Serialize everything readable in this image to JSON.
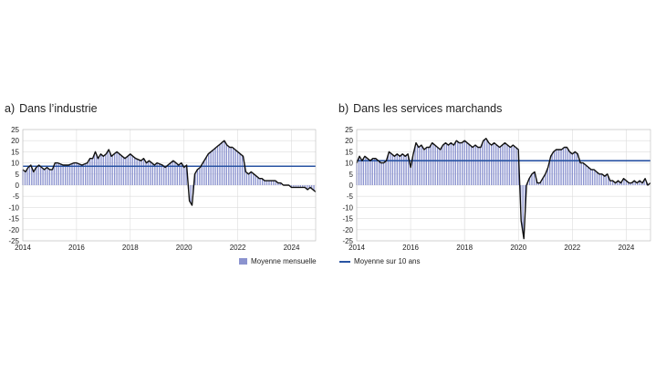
{
  "chart_data": [
    {
      "type": "bar",
      "panel_letter": "a)",
      "title": "Dans l’industrie",
      "yticks": [
        25,
        20,
        15,
        10,
        5,
        0,
        -5,
        -10,
        -15,
        -20,
        -25
      ],
      "ylim": [
        -25,
        25
      ],
      "xlim": [
        2014.0,
        2024.9
      ],
      "xticks": [
        "2014",
        "2016",
        "2018",
        "2020",
        "2022",
        "2024"
      ],
      "series": [
        {
          "kind": "bar-and-line",
          "points": [
            [
              2014.0,
              7
            ],
            [
              2014.1,
              6
            ],
            [
              2014.2,
              8
            ],
            [
              2014.3,
              9
            ],
            [
              2014.4,
              6
            ],
            [
              2014.5,
              8
            ],
            [
              2014.6,
              9
            ],
            [
              2014.7,
              8
            ],
            [
              2014.8,
              7
            ],
            [
              2014.9,
              8
            ],
            [
              2015.0,
              7
            ],
            [
              2015.1,
              7
            ],
            [
              2015.2,
              10
            ],
            [
              2015.3,
              10
            ],
            [
              2015.5,
              9
            ],
            [
              2015.7,
              9
            ],
            [
              2015.9,
              10
            ],
            [
              2016.0,
              10
            ],
            [
              2016.2,
              9
            ],
            [
              2016.4,
              10
            ],
            [
              2016.5,
              12
            ],
            [
              2016.6,
              12
            ],
            [
              2016.7,
              15
            ],
            [
              2016.8,
              12
            ],
            [
              2016.9,
              14
            ],
            [
              2017.0,
              13
            ],
            [
              2017.1,
              14
            ],
            [
              2017.2,
              16
            ],
            [
              2017.3,
              13
            ],
            [
              2017.4,
              14
            ],
            [
              2017.5,
              15
            ],
            [
              2017.6,
              14
            ],
            [
              2017.7,
              13
            ],
            [
              2017.8,
              12
            ],
            [
              2017.9,
              13
            ],
            [
              2018.0,
              14
            ],
            [
              2018.1,
              13
            ],
            [
              2018.2,
              12
            ],
            [
              2018.4,
              11
            ],
            [
              2018.5,
              12
            ],
            [
              2018.6,
              10
            ],
            [
              2018.7,
              11
            ],
            [
              2018.8,
              10
            ],
            [
              2018.9,
              9
            ],
            [
              2019.0,
              10
            ],
            [
              2019.2,
              9
            ],
            [
              2019.3,
              8
            ],
            [
              2019.4,
              9
            ],
            [
              2019.5,
              10
            ],
            [
              2019.6,
              11
            ],
            [
              2019.7,
              10
            ],
            [
              2019.8,
              9
            ],
            [
              2019.9,
              10
            ],
            [
              2020.0,
              8
            ],
            [
              2020.1,
              9
            ],
            [
              2020.2,
              -7
            ],
            [
              2020.3,
              -9
            ],
            [
              2020.4,
              5
            ],
            [
              2020.5,
              7
            ],
            [
              2020.6,
              8
            ],
            [
              2020.7,
              10
            ],
            [
              2020.8,
              12
            ],
            [
              2020.9,
              14
            ],
            [
              2021.0,
              15
            ],
            [
              2021.1,
              16
            ],
            [
              2021.2,
              17
            ],
            [
              2021.3,
              18
            ],
            [
              2021.4,
              19
            ],
            [
              2021.5,
              20
            ],
            [
              2021.6,
              18
            ],
            [
              2021.7,
              17
            ],
            [
              2021.8,
              17
            ],
            [
              2021.9,
              16
            ],
            [
              2022.0,
              15
            ],
            [
              2022.1,
              14
            ],
            [
              2022.2,
              13
            ],
            [
              2022.3,
              6
            ],
            [
              2022.4,
              5
            ],
            [
              2022.5,
              6
            ],
            [
              2022.6,
              5
            ],
            [
              2022.7,
              4
            ],
            [
              2022.8,
              3
            ],
            [
              2022.9,
              3
            ],
            [
              2023.0,
              2
            ],
            [
              2023.2,
              2
            ],
            [
              2023.4,
              2
            ],
            [
              2023.5,
              1
            ],
            [
              2023.6,
              1
            ],
            [
              2023.7,
              0
            ],
            [
              2023.8,
              0
            ],
            [
              2023.9,
              0
            ],
            [
              2024.0,
              -1
            ],
            [
              2024.2,
              -1
            ],
            [
              2024.4,
              -1
            ],
            [
              2024.5,
              -1
            ],
            [
              2024.6,
              -2
            ],
            [
              2024.7,
              -1
            ],
            [
              2024.8,
              -2
            ],
            [
              2024.9,
              -3
            ]
          ]
        }
      ],
      "reference_line": {
        "name": "Moyenne sur 10 ans",
        "value": 8.5,
        "color": "#2a54a3"
      },
      "bar_color": "#8b93cf",
      "line_color": "#111111",
      "legend": {
        "label": "Moyenne mensuelle",
        "placement": "bottom-right"
      }
    },
    {
      "type": "bar",
      "panel_letter": "b)",
      "title": "Dans les services marchands",
      "yticks": [
        25,
        20,
        15,
        10,
        5,
        0,
        -5,
        -10,
        -15,
        -20,
        -25
      ],
      "ylim": [
        -25,
        25
      ],
      "xlim": [
        2014.0,
        2024.9
      ],
      "xticks": [
        "2014",
        "2016",
        "2018",
        "2020",
        "2022",
        "2024"
      ],
      "series": [
        {
          "kind": "bar-and-line",
          "points": [
            [
              2014.0,
              10
            ],
            [
              2014.1,
              13
            ],
            [
              2014.2,
              11
            ],
            [
              2014.3,
              13
            ],
            [
              2014.4,
              12
            ],
            [
              2014.5,
              11
            ],
            [
              2014.6,
              12
            ],
            [
              2014.7,
              12
            ],
            [
              2014.8,
              11
            ],
            [
              2014.9,
              10
            ],
            [
              2015.0,
              10
            ],
            [
              2015.1,
              11
            ],
            [
              2015.2,
              15
            ],
            [
              2015.3,
              14
            ],
            [
              2015.4,
              13
            ],
            [
              2015.5,
              14
            ],
            [
              2015.6,
              13
            ],
            [
              2015.7,
              14
            ],
            [
              2015.8,
              13
            ],
            [
              2015.9,
              14
            ],
            [
              2016.0,
              8
            ],
            [
              2016.1,
              14
            ],
            [
              2016.2,
              19
            ],
            [
              2016.3,
              17
            ],
            [
              2016.4,
              18
            ],
            [
              2016.5,
              16
            ],
            [
              2016.6,
              17
            ],
            [
              2016.7,
              17
            ],
            [
              2016.8,
              19
            ],
            [
              2016.9,
              18
            ],
            [
              2017.0,
              17
            ],
            [
              2017.1,
              16
            ],
            [
              2017.2,
              18
            ],
            [
              2017.3,
              19
            ],
            [
              2017.4,
              18
            ],
            [
              2017.5,
              19
            ],
            [
              2017.6,
              18
            ],
            [
              2017.7,
              20
            ],
            [
              2017.8,
              19
            ],
            [
              2017.9,
              19
            ],
            [
              2018.0,
              20
            ],
            [
              2018.1,
              19
            ],
            [
              2018.2,
              18
            ],
            [
              2018.3,
              17
            ],
            [
              2018.4,
              18
            ],
            [
              2018.5,
              17
            ],
            [
              2018.6,
              17
            ],
            [
              2018.7,
              20
            ],
            [
              2018.8,
              21
            ],
            [
              2018.9,
              19
            ],
            [
              2019.0,
              18
            ],
            [
              2019.1,
              19
            ],
            [
              2019.2,
              18
            ],
            [
              2019.3,
              17
            ],
            [
              2019.4,
              18
            ],
            [
              2019.5,
              19
            ],
            [
              2019.6,
              18
            ],
            [
              2019.7,
              17
            ],
            [
              2019.8,
              18
            ],
            [
              2019.9,
              17
            ],
            [
              2020.0,
              16
            ],
            [
              2020.1,
              -16
            ],
            [
              2020.2,
              -24
            ],
            [
              2020.3,
              0
            ],
            [
              2020.4,
              3
            ],
            [
              2020.5,
              5
            ],
            [
              2020.6,
              6
            ],
            [
              2020.7,
              1
            ],
            [
              2020.8,
              1
            ],
            [
              2020.9,
              3
            ],
            [
              2021.0,
              5
            ],
            [
              2021.1,
              8
            ],
            [
              2021.2,
              13
            ],
            [
              2021.3,
              15
            ],
            [
              2021.4,
              16
            ],
            [
              2021.5,
              16
            ],
            [
              2021.6,
              16
            ],
            [
              2021.7,
              17
            ],
            [
              2021.8,
              17
            ],
            [
              2021.9,
              15
            ],
            [
              2022.0,
              14
            ],
            [
              2022.1,
              15
            ],
            [
              2022.2,
              14
            ],
            [
              2022.3,
              10
            ],
            [
              2022.4,
              10
            ],
            [
              2022.5,
              9
            ],
            [
              2022.6,
              8
            ],
            [
              2022.7,
              7
            ],
            [
              2022.8,
              7
            ],
            [
              2022.9,
              6
            ],
            [
              2023.0,
              5
            ],
            [
              2023.1,
              5
            ],
            [
              2023.2,
              4
            ],
            [
              2023.3,
              5
            ],
            [
              2023.4,
              2
            ],
            [
              2023.5,
              2
            ],
            [
              2023.6,
              1
            ],
            [
              2023.7,
              2
            ],
            [
              2023.8,
              1
            ],
            [
              2023.9,
              3
            ],
            [
              2024.0,
              2
            ],
            [
              2024.1,
              1
            ],
            [
              2024.2,
              1
            ],
            [
              2024.3,
              2
            ],
            [
              2024.4,
              1
            ],
            [
              2024.5,
              2
            ],
            [
              2024.6,
              1
            ],
            [
              2024.7,
              3
            ],
            [
              2024.8,
              0
            ],
            [
              2024.9,
              1
            ]
          ]
        }
      ],
      "reference_line": {
        "name": "Moyenne sur 10 ans",
        "value": 11,
        "color": "#2a54a3"
      },
      "bar_color": "#8b93cf",
      "line_color": "#111111",
      "legend": {
        "label": "Moyenne sur 10 ans",
        "placement": "bottom-left"
      }
    }
  ]
}
